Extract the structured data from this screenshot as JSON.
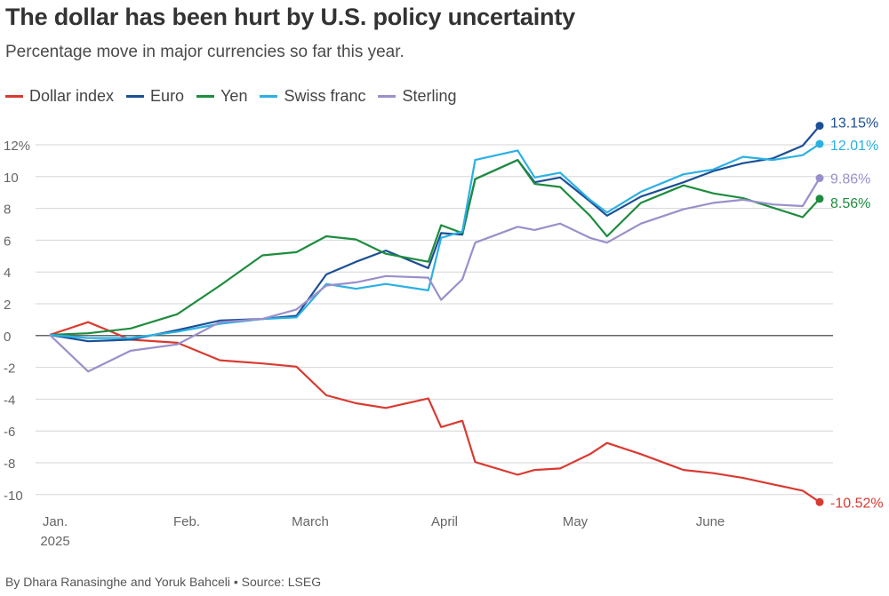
{
  "header": {
    "title": "The dollar has been hurt by U.S. policy uncertainty",
    "subtitle": "Percentage move in major currencies so far this year."
  },
  "footer": {
    "credit": "By Dhara Ranasinghe and Yoruk Bahceli  • Source: LSEG"
  },
  "chart_data": {
    "type": "line",
    "title": "The dollar has been hurt by U.S. policy uncertainty",
    "subtitle": "Percentage move in major currencies so far this year.",
    "ylabel": "",
    "xlabel": "",
    "ylim": [
      -11,
      13
    ],
    "grid": true,
    "legend": "top-left",
    "x_ticks": [
      "Jan.",
      "Feb.",
      "March",
      "April",
      "May",
      "June"
    ],
    "x_year": "2025",
    "y_ticks": [
      "12%",
      "10",
      "8",
      "6",
      "4",
      "2",
      "0",
      "-2",
      "-4",
      "-6",
      "-8",
      "-10"
    ],
    "x": [
      "2025-01-01",
      "2025-01-10",
      "2025-01-20",
      "2025-01-31",
      "2025-02-10",
      "2025-02-20",
      "2025-02-28",
      "2025-03-07",
      "2025-03-14",
      "2025-03-21",
      "2025-03-31",
      "2025-04-03",
      "2025-04-08",
      "2025-04-11",
      "2025-04-21",
      "2025-04-25",
      "2025-05-01",
      "2025-05-08",
      "2025-05-12",
      "2025-05-20",
      "2025-05-30",
      "2025-06-06",
      "2025-06-13",
      "2025-06-20",
      "2025-06-27",
      "2025-07-01"
    ],
    "series": [
      {
        "name": "Dollar index",
        "color": "#d93a30",
        "end_label": "-10.52%",
        "values": [
          0,
          0.8,
          -0.3,
          -0.5,
          -1.6,
          -1.8,
          -2.0,
          -3.8,
          -4.3,
          -4.6,
          -4.0,
          -5.8,
          -5.4,
          -8.0,
          -8.8,
          -8.5,
          -8.4,
          -7.5,
          -6.8,
          -7.5,
          -8.5,
          -8.7,
          -9.0,
          -9.4,
          -9.8,
          -10.52
        ]
      },
      {
        "name": "Euro",
        "color": "#1c4f94",
        "end_label": "13.15%",
        "values": [
          0,
          -0.4,
          -0.3,
          0.3,
          0.9,
          1.0,
          1.2,
          3.8,
          4.6,
          5.3,
          4.2,
          6.4,
          6.3,
          9.8,
          11.0,
          9.6,
          9.9,
          8.4,
          7.5,
          8.7,
          9.6,
          10.3,
          10.8,
          11.1,
          11.9,
          13.15
        ]
      },
      {
        "name": "Yen",
        "color": "#1e8c3e",
        "end_label": "8.56%",
        "values": [
          0,
          0.1,
          0.4,
          1.3,
          3.1,
          5.0,
          5.2,
          6.2,
          6.0,
          5.1,
          4.6,
          6.9,
          6.4,
          9.8,
          11.0,
          9.5,
          9.3,
          7.5,
          6.2,
          8.3,
          9.4,
          8.9,
          8.6,
          8.0,
          7.4,
          8.56
        ]
      },
      {
        "name": "Swiss franc",
        "color": "#2bb0e3",
        "end_label": "12.01%",
        "values": [
          0,
          -0.2,
          -0.2,
          0.2,
          0.7,
          1.0,
          1.1,
          3.2,
          2.9,
          3.2,
          2.8,
          6.1,
          6.5,
          11.0,
          11.6,
          9.9,
          10.2,
          8.5,
          7.7,
          9.0,
          10.1,
          10.4,
          11.2,
          11.0,
          11.3,
          12.01
        ]
      },
      {
        "name": "Sterling",
        "color": "#9b8fcb",
        "end_label": "9.86%",
        "values": [
          0,
          -2.3,
          -1.0,
          -0.6,
          0.8,
          1.0,
          1.6,
          3.1,
          3.3,
          3.7,
          3.6,
          2.2,
          3.5,
          5.8,
          6.8,
          6.6,
          7.0,
          6.1,
          5.8,
          7.0,
          7.9,
          8.3,
          8.5,
          8.2,
          8.1,
          9.86
        ]
      }
    ]
  }
}
